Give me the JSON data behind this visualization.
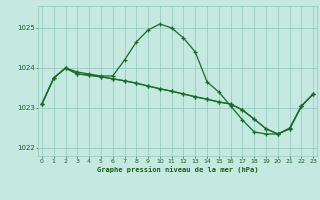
{
  "title": "Graphe pression niveau de la mer (hPa)",
  "background_color": "#c5e8e0",
  "line_color": "#1a6b2a",
  "grid_color": "#90c8c0",
  "text_color": "#1a5c1a",
  "ylim": [
    1021.8,
    1025.55
  ],
  "xlim": [
    -0.3,
    23.3
  ],
  "yticks": [
    1022,
    1023,
    1024,
    1025
  ],
  "xticks": [
    0,
    1,
    2,
    3,
    4,
    5,
    6,
    7,
    8,
    9,
    10,
    11,
    12,
    13,
    14,
    15,
    16,
    17,
    18,
    19,
    20,
    21,
    22,
    23
  ],
  "series": [
    {
      "x": [
        0,
        1,
        2,
        3,
        4,
        5,
        6,
        7,
        8,
        9,
        10,
        11,
        12,
        13,
        14,
        15,
        16,
        17,
        18,
        19,
        20,
        21,
        22,
        23
      ],
      "y": [
        1023.1,
        1023.75,
        1024.0,
        1023.9,
        1023.85,
        1023.8,
        1023.8,
        1024.2,
        1024.65,
        1024.95,
        1025.1,
        1025.0,
        1024.75,
        1024.4,
        1023.65,
        1023.4,
        1023.05,
        1022.7,
        1022.4,
        1022.35,
        1022.35,
        1022.5,
        1023.05,
        1023.35
      ]
    },
    {
      "x": [
        0,
        1,
        2,
        3,
        4,
        5,
        6,
        7,
        8,
        9,
        10,
        11,
        12,
        13,
        14,
        15,
        16,
        17,
        18,
        19,
        20,
        21,
        22,
        23
      ],
      "y": [
        1023.1,
        1023.75,
        1024.0,
        1023.85,
        1023.82,
        1023.78,
        1023.73,
        1023.68,
        1023.62,
        1023.55,
        1023.48,
        1023.42,
        1023.35,
        1023.28,
        1023.22,
        1023.15,
        1023.1,
        1022.95,
        1022.72,
        1022.48,
        1022.35,
        1022.48,
        1023.05,
        1023.35
      ]
    },
    {
      "x": [
        0,
        1,
        2,
        3,
        4,
        5,
        6,
        7,
        8,
        9,
        10,
        11,
        12,
        13,
        14,
        15,
        16,
        17,
        18,
        19,
        20,
        21,
        22,
        23
      ],
      "y": [
        1023.1,
        1023.75,
        1024.0,
        1023.85,
        1023.82,
        1023.78,
        1023.73,
        1023.68,
        1023.62,
        1023.55,
        1023.48,
        1023.42,
        1023.35,
        1023.28,
        1023.22,
        1023.15,
        1023.1,
        1022.95,
        1022.72,
        1022.48,
        1022.35,
        1022.48,
        1023.05,
        1023.35
      ]
    }
  ],
  "marker": "+",
  "markersize": 3.5,
  "linewidth": 0.9
}
